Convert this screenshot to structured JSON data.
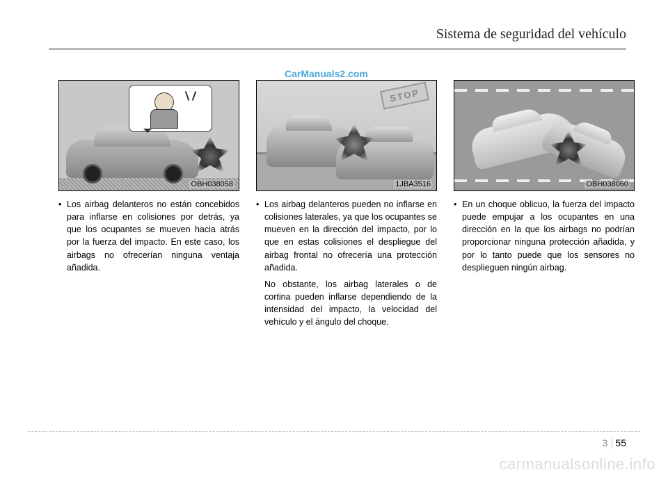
{
  "header": "Sistema de seguridad del vehículo",
  "watermark_top": "CarManuals2.com",
  "watermark_bottom": "carmanualsonline.info",
  "page": {
    "chapter": "3",
    "number": "55"
  },
  "columns": [
    {
      "fig_label": "OBH038058",
      "bullets": [
        "Los airbag delanteros no están concebidos para inflarse en colisiones por detrás, ya que los ocupantes se mueven hacia atrás por la fuerza del impacto.  En este caso, los airbags no ofrecerían ninguna ventaja añadida."
      ],
      "extra": []
    },
    {
      "fig_label": "1JBA3516",
      "bullets": [
        "Los airbag delanteros pueden no inflarse en colisiones laterales, ya que los ocupantes se mueven en la dirección del impacto, por lo que en estas colisiones el despliegue del airbag frontal no ofrecería una protección añadida."
      ],
      "extra": [
        "No obstante, los airbag laterales o de cortina pueden inflarse dependiendo de la intensidad del impacto, la velocidad del vehículo y el ángulo del choque."
      ],
      "stop_label": "STOP"
    },
    {
      "fig_label": "OBH038060",
      "bullets": [
        "En un choque oblicuo, la fuerza del impacto puede empujar a los ocupantes en una dirección en la que los airbags no podrían proporcionar ninguna protección añadida, y por lo tanto puede que los sensores no desplieguen ningún airbag."
      ],
      "extra": []
    }
  ]
}
